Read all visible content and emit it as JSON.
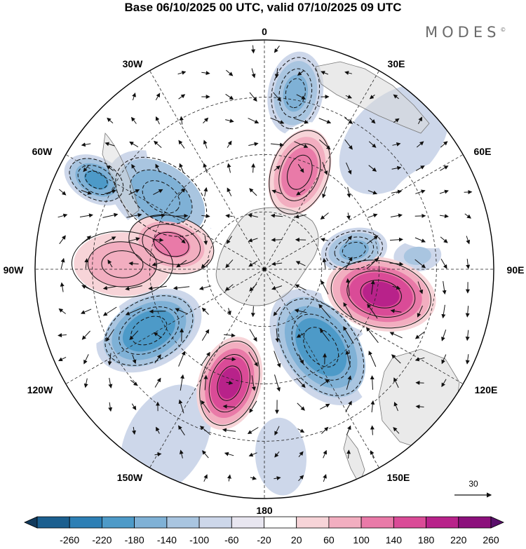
{
  "title": "Base 06/10/2025 00 UTC, valid 07/10/2025 09 UTC",
  "brand": {
    "name": "MODES",
    "mark": "©"
  },
  "longitude_labels": {
    "north": "0",
    "ne30": "30E",
    "ne60": "60E",
    "east": "90E",
    "se120": "120E",
    "se150": "150E",
    "south": "180",
    "sw150": "150W",
    "sw120": "120W",
    "west": "90W",
    "nw60": "60W",
    "nw30": "30W"
  },
  "vector_reference": {
    "value": "30"
  },
  "colorbar": {
    "ticks": [
      "-260",
      "-220",
      "-180",
      "-140",
      "-100",
      "-60",
      "-20",
      "20",
      "60",
      "100",
      "140",
      "180",
      "220",
      "260"
    ],
    "colors": [
      "#123a5c",
      "#1b5f8f",
      "#2d7fb5",
      "#4d9ac8",
      "#7fb1d6",
      "#a9c5e0",
      "#cdd7ea",
      "#e8e6f0",
      "#ffffff",
      "#f7d4d8",
      "#f2aec0",
      "#e97aa8",
      "#da4b97",
      "#b8228a",
      "#8c107c",
      "#5a0f6b"
    ]
  },
  "anomaly_centers": [
    {
      "lon": 10,
      "dist": 0.78,
      "value": -120,
      "spread": 0.1
    },
    {
      "lon": 20,
      "dist": 0.45,
      "value": 180,
      "spread": 0.12
    },
    {
      "lon": -55,
      "dist": 0.55,
      "value": -140,
      "spread": 0.14
    },
    {
      "lon": -62,
      "dist": 0.83,
      "value": -160,
      "spread": 0.08
    },
    {
      "lon": -75,
      "dist": 0.42,
      "value": 160,
      "spread": 0.12
    },
    {
      "lon": -88,
      "dist": 0.62,
      "value": 140,
      "spread": 0.14
    },
    {
      "lon": -118,
      "dist": 0.57,
      "value": -180,
      "spread": 0.13
    },
    {
      "lon": -163,
      "dist": 0.52,
      "value": 240,
      "spread": 0.12
    },
    {
      "lon": 144,
      "dist": 0.42,
      "value": -180,
      "spread": 0.15
    },
    {
      "lon": 102,
      "dist": 0.52,
      "value": 240,
      "spread": 0.14
    },
    {
      "lon": 78,
      "dist": 0.4,
      "value": -120,
      "spread": 0.08
    },
    {
      "lon": 85,
      "dist": 0.67,
      "value": -80,
      "spread": 0.06
    },
    {
      "lon": -30,
      "dist": 0.55,
      "value": 60,
      "spread": 0.2
    },
    {
      "lon": 45,
      "dist": 0.8,
      "value": -40,
      "spread": 0.2
    },
    {
      "lon": 70,
      "dist": 0.85,
      "value": 40,
      "spread": 0.2
    },
    {
      "lon": 128,
      "dist": 0.8,
      "value": 60,
      "spread": 0.18
    },
    {
      "lon": -150,
      "dist": 0.86,
      "value": -60,
      "spread": 0.16
    },
    {
      "lon": 175,
      "dist": 0.82,
      "value": -40,
      "spread": 0.12
    },
    {
      "lon": -105,
      "dist": 0.85,
      "value": 60,
      "spread": 0.12
    }
  ]
}
